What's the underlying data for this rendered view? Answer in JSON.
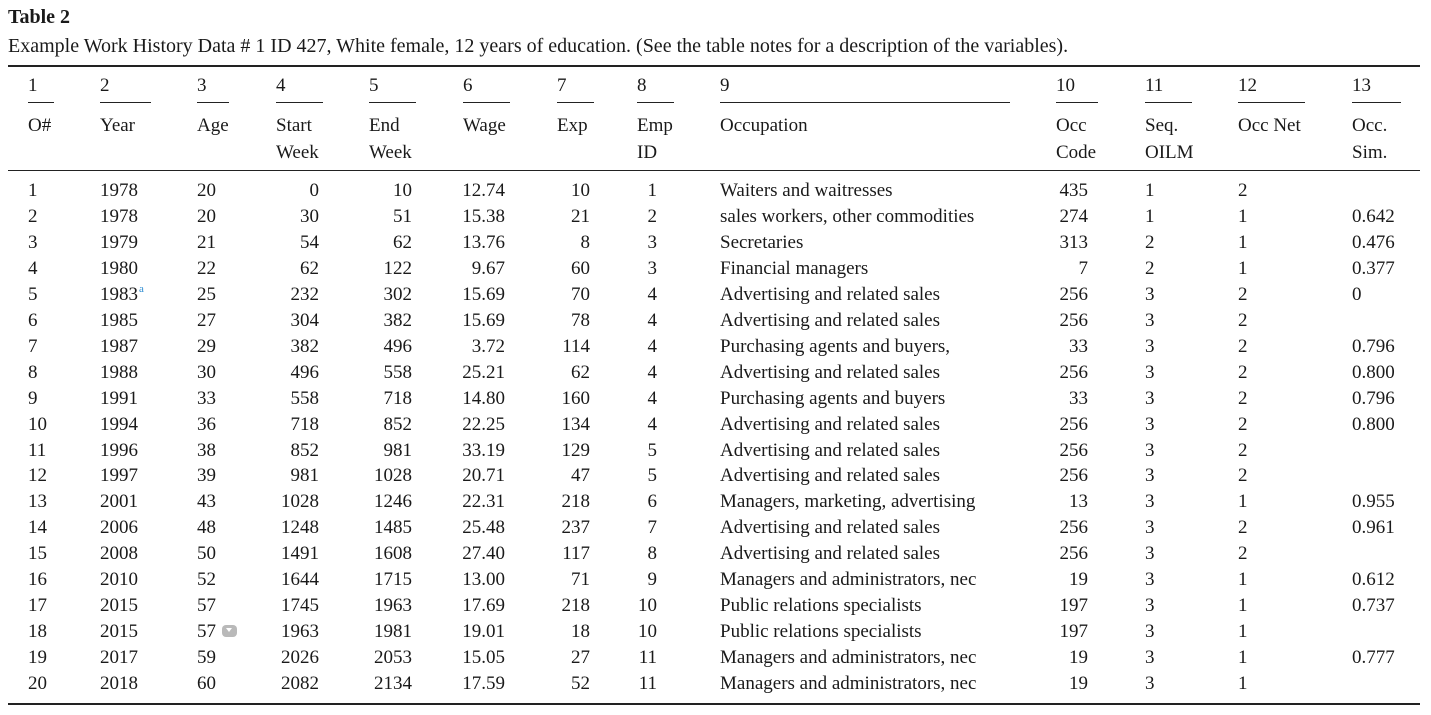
{
  "header": {
    "label": "Table 2",
    "caption": "Example Work History Data # 1 ID 427, White female, 12 years of education. (See the table notes for a description of the variables)."
  },
  "table": {
    "column_numbers": [
      "1",
      "2",
      "3",
      "4",
      "5",
      "6",
      "7",
      "8",
      "9",
      "10",
      "11",
      "12",
      "13"
    ],
    "columns": [
      [
        "O#"
      ],
      [
        "Year"
      ],
      [
        "Age"
      ],
      [
        "Start",
        "Week"
      ],
      [
        "End",
        "Week"
      ],
      [
        "Wage"
      ],
      [
        "Exp"
      ],
      [
        "Emp",
        "ID"
      ],
      [
        "Occupation"
      ],
      [
        "Occ",
        "Code"
      ],
      [
        "Seq.",
        "OILM"
      ],
      [
        "Occ Net"
      ],
      [
        "Occ.",
        "Sim."
      ]
    ],
    "rows": [
      [
        "1",
        "1978",
        "20",
        "0",
        "10",
        "12.74",
        "10",
        "1",
        "Waiters and waitresses",
        "435",
        "1",
        "2",
        null
      ],
      [
        "2",
        "1978",
        "20",
        "30",
        "51",
        "15.38",
        "21",
        "2",
        "sales workers, other commodities",
        "274",
        "1",
        "1",
        "0.642"
      ],
      [
        "3",
        "1979",
        "21",
        "54",
        "62",
        "13.76",
        "8",
        "3",
        "Secretaries",
        "313",
        "2",
        "1",
        "0.476"
      ],
      [
        "4",
        "1980",
        "22",
        "62",
        "122",
        "9.67",
        "60",
        "3",
        "Financial managers",
        "7",
        "2",
        "1",
        "0.377"
      ],
      [
        "5",
        {
          "text": "1983",
          "note": "a"
        },
        "25",
        "232",
        "302",
        "15.69",
        "70",
        "4",
        "Advertising and related sales",
        "256",
        "3",
        "2",
        "0"
      ],
      [
        "6",
        "1985",
        "27",
        "304",
        "382",
        "15.69",
        "78",
        "4",
        "Advertising and related sales",
        "256",
        "3",
        "2",
        null
      ],
      [
        "7",
        "1987",
        "29",
        "382",
        "496",
        "3.72",
        "114",
        "4",
        "Purchasing agents and buyers,",
        "33",
        "3",
        "2",
        "0.796"
      ],
      [
        "8",
        "1988",
        "30",
        "496",
        "558",
        "25.21",
        "62",
        "4",
        "Advertising and related sales",
        "256",
        "3",
        "2",
        "0.800"
      ],
      [
        "9",
        "1991",
        "33",
        "558",
        "718",
        "14.80",
        "160",
        "4",
        "Purchasing agents and buyers",
        "33",
        "3",
        "2",
        "0.796"
      ],
      [
        "10",
        "1994",
        "36",
        "718",
        "852",
        "22.25",
        "134",
        "4",
        "Advertising and related sales",
        "256",
        "3",
        "2",
        "0.800"
      ],
      [
        "11",
        "1996",
        "38",
        "852",
        "981",
        "33.19",
        "129",
        "5",
        "Advertising and related sales",
        "256",
        "3",
        "2",
        null
      ],
      [
        "12",
        "1997",
        "39",
        "981",
        "1028",
        "20.71",
        "47",
        "5",
        "Advertising and related sales",
        "256",
        "3",
        "2",
        null
      ],
      [
        "13",
        "2001",
        "43",
        "1028",
        "1246",
        "22.31",
        "218",
        "6",
        "Managers, marketing, advertising",
        "13",
        "3",
        "1",
        "0.955"
      ],
      [
        "14",
        "2006",
        "48",
        "1248",
        "1485",
        "25.48",
        "237",
        "7",
        "Advertising and related sales",
        "256",
        "3",
        "2",
        "0.961"
      ],
      [
        "15",
        "2008",
        "50",
        "1491",
        "1608",
        "27.40",
        "117",
        "8",
        "Advertising and related sales",
        "256",
        "3",
        "2",
        null
      ],
      [
        "16",
        "2010",
        "52",
        "1644",
        "1715",
        "13.00",
        "71",
        "9",
        "Managers and administrators, nec",
        "19",
        "3",
        "1",
        "0.612"
      ],
      [
        "17",
        "2015",
        "57",
        "1745",
        "1963",
        "17.69",
        "218",
        "10",
        "Public relations specialists",
        "197",
        "3",
        "1",
        "0.737"
      ],
      [
        "18",
        "2015",
        "57",
        "1963",
        "1981",
        "19.01",
        "18",
        "10",
        "Public relations specialists",
        "197",
        "3",
        "1",
        null
      ],
      [
        "19",
        "2017",
        "59",
        "2026",
        "2053",
        "15.05",
        "27",
        "11",
        "Managers and administrators, nec",
        "19",
        "3",
        "1",
        "0.777"
      ],
      [
        "20",
        "2018",
        "60",
        "2082",
        "2134",
        "17.59",
        "52",
        "11",
        "Managers and administrators, nec",
        "19",
        "3",
        "1",
        null
      ]
    ]
  }
}
